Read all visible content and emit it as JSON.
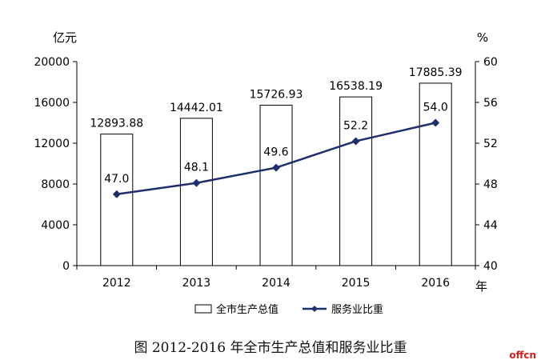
{
  "chart_data": {
    "type": "bar+line",
    "categories": [
      "2012",
      "2013",
      "2014",
      "2015",
      "2016"
    ],
    "series": [
      {
        "name": "全市生产总值",
        "type": "bar",
        "axis": "left",
        "values": [
          12893.88,
          14442.01,
          15726.93,
          16538.19,
          17885.39
        ],
        "labels": [
          "12893.88",
          "14442.01",
          "15726.93",
          "16538.19",
          "17885.39"
        ],
        "color": "#ffffff",
        "stroke": "#000000"
      },
      {
        "name": "服务业比重",
        "type": "line",
        "axis": "right",
        "values": [
          47.0,
          48.1,
          49.6,
          52.2,
          54.0
        ],
        "labels": [
          "47.0",
          "48.1",
          "49.6",
          "52.2",
          "54.0"
        ],
        "color": "#1f2f6e"
      }
    ],
    "left_axis": {
      "unit": "亿元",
      "ylim": [
        0,
        20000
      ],
      "ticks": [
        "0",
        "4000",
        "8000",
        "12000",
        "16000",
        "20000"
      ]
    },
    "right_axis": {
      "unit": "%",
      "ylim": [
        40,
        60
      ],
      "ticks": [
        "40",
        "44",
        "48",
        "52",
        "56",
        "60"
      ]
    },
    "x_unit": "年",
    "legend_position": "bottom",
    "grid": false
  },
  "caption": "图 2012-2016 年全市生产总值和服务业比重",
  "watermark": "offcn"
}
